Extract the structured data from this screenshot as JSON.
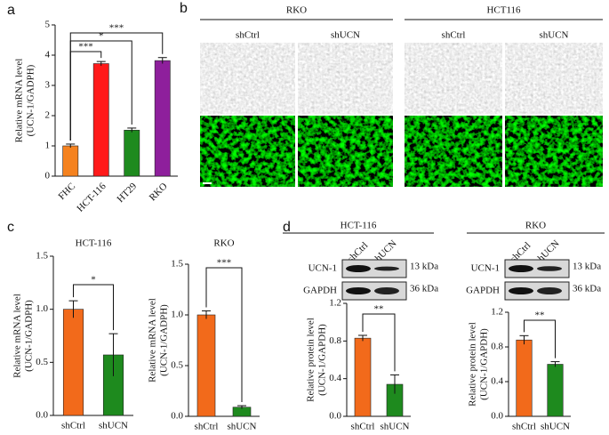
{
  "panel_labels": [
    "a",
    "b",
    "c",
    "d"
  ],
  "microscopy": {
    "groups": [
      "RKO",
      "HCT116"
    ],
    "conditions": [
      "shCtrl",
      "shUCN",
      "shCtrl",
      "shUCN"
    ]
  },
  "blots": [
    {
      "title": "HCT-116",
      "lanes": [
        "shCtrl",
        "shUCN"
      ],
      "bands": [
        "UCN-1",
        "GAPDH"
      ],
      "sizes": [
        "13 kDa",
        "36 kDa"
      ]
    },
    {
      "title": "RKO",
      "lanes": [
        "shCtrl",
        "shUCN"
      ],
      "bands": [
        "UCN-1",
        "GAPDH"
      ],
      "sizes": [
        "13 kDa",
        "36 kDa"
      ]
    }
  ],
  "chart_data": [
    {
      "type": "bar",
      "ylabel": [
        "Relative mRNA level",
        "(UCN-1/GADPH)"
      ],
      "categories": [
        "FHC",
        "HCT-116",
        "HT29",
        "RKO"
      ],
      "values": [
        1.0,
        3.72,
        1.52,
        3.82
      ],
      "errors": [
        0.06,
        0.07,
        0.07,
        0.1
      ],
      "colors": [
        "#f5821f",
        "#ff1a1a",
        "#1e8a1e",
        "#8e1f9c"
      ],
      "ylim": [
        0,
        5
      ],
      "yticks": [
        0,
        1,
        2,
        3,
        4,
        5
      ],
      "annotations": [
        "***",
        "*",
        "***"
      ]
    },
    {
      "type": "bar",
      "title": "HCT-116",
      "ylabel": [
        "Relative mRNA level",
        "(UCN-1/GADPH)"
      ],
      "categories": [
        "shCtrl",
        "shUCN"
      ],
      "values": [
        1.0,
        0.57
      ],
      "errors": [
        0.08,
        0.2
      ],
      "colors": [
        "#f26a1b",
        "#1e8a1e"
      ],
      "ylim": [
        0,
        1.5
      ],
      "yticks": [
        {
          "value": 0,
          "label": "0.0"
        },
        0.5,
        {
          "value": 1,
          "label": "1.0"
        },
        1.5
      ],
      "annotations": [
        "*"
      ]
    },
    {
      "type": "bar",
      "title": "RKO",
      "ylabel": [
        "Relative mRNA level",
        "(UCN-1/GADPH)"
      ],
      "categories": [
        "shCtrl",
        "shUCN"
      ],
      "values": [
        1.0,
        0.09
      ],
      "errors": [
        0.04,
        0.015
      ],
      "colors": [
        "#f26a1b",
        "#1e8a1e"
      ],
      "ylim": [
        0,
        1.5
      ],
      "yticks": [
        {
          "value": 0,
          "label": "0.0"
        },
        0.5,
        {
          "value": 1,
          "label": "1.0"
        },
        1.5
      ],
      "annotations": [
        "***"
      ]
    },
    {
      "type": "bar",
      "ylabel": [
        "Relative protein level",
        "(UCN-1/GAPDH)"
      ],
      "categories": [
        "shCtrl",
        "shUCN"
      ],
      "values": [
        0.83,
        0.34
      ],
      "errors": [
        0.03,
        0.1
      ],
      "colors": [
        "#f26a1b",
        "#1e8a1e"
      ],
      "ylim": [
        0,
        1.2
      ],
      "yticks": [
        {
          "value": 0,
          "label": "0.0"
        },
        0.4,
        0.8,
        1.2
      ],
      "annotations": [
        "**"
      ]
    },
    {
      "type": "bar",
      "ylabel": [
        "Relative protein level",
        "(UCN-1/GAPDH)"
      ],
      "categories": [
        "shCtrl",
        "shUCN"
      ],
      "values": [
        0.88,
        0.6
      ],
      "errors": [
        0.05,
        0.03
      ],
      "colors": [
        "#f26a1b",
        "#1e8a1e"
      ],
      "ylim": [
        0,
        1.2
      ],
      "yticks": [
        {
          "value": 0,
          "label": "0.0"
        },
        0.4,
        0.8,
        1.2
      ],
      "annotations": [
        "**"
      ]
    }
  ]
}
